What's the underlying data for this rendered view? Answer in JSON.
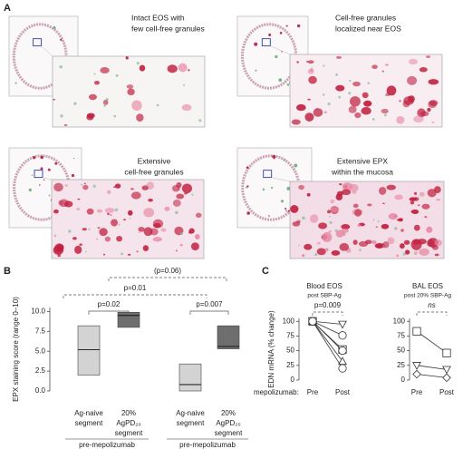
{
  "panels": {
    "A": {
      "label": "A",
      "images": [
        {
          "caption": [
            "Intact EOS with",
            "few cell-free granules"
          ]
        },
        {
          "caption": [
            "Cell-free granules",
            "localized near EOS"
          ]
        },
        {
          "caption": [
            "Extensive",
            "cell-free granules"
          ]
        },
        {
          "caption": [
            "Extensive EPX",
            "within the mucosa"
          ]
        }
      ]
    },
    "B": {
      "label": "B"
    },
    "C": {
      "label": "C"
    }
  },
  "chart_data": [
    {
      "type": "box",
      "ylabel": "EPX staining score (range 0–10)",
      "categories": [
        [
          "Ag-naive",
          "segment"
        ],
        [
          "20%",
          "AgPD₂₀",
          "segment"
        ],
        [
          "Ag-naive",
          "segment"
        ],
        [
          "20%",
          "AgPD₂₀",
          "segment"
        ]
      ],
      "groups": [
        "pre-mepolizumab",
        "pre-mepolizumab"
      ],
      "boxes": [
        {
          "low": 2.0,
          "median": 5.2,
          "high": 8.2
        },
        {
          "low": 8.0,
          "median": 9.5,
          "high": 9.9
        },
        {
          "low": 0.0,
          "median": 0.8,
          "high": 3.4
        },
        {
          "low": 5.3,
          "median": 5.6,
          "high": 8.2
        }
      ],
      "colors": [
        "#d3d3d3",
        "#6e6e6e",
        "#d3d3d3",
        "#6e6e6e"
      ],
      "ylim": [
        0,
        10.5
      ],
      "yticks": [
        {
          "value": 0,
          "label": "0.0"
        },
        {
          "value": 2.5,
          "label": "2.5"
        },
        {
          "value": 5,
          "label": "5.0"
        },
        {
          "value": 7.5,
          "label": "7.5"
        },
        {
          "value": 10,
          "label": "10.0"
        }
      ],
      "annotations": [
        "(p=0.06)",
        "p=0.01",
        "p=0.02",
        "p=0.007"
      ]
    },
    {
      "type": "line",
      "title": "Blood EOS",
      "subtitle": "post SBP-Ag",
      "ylabel": "EDN mRNA (% change)",
      "xlabel": "mepolizumab:",
      "categories": [
        "Pre",
        "Post"
      ],
      "ylim": [
        0,
        105
      ],
      "yticks": [
        0,
        25,
        50,
        75,
        100
      ],
      "color": "#333",
      "series": [
        {
          "marker": "triangle-down",
          "values": [
            100,
            95
          ]
        },
        {
          "marker": "circle",
          "values": [
            100,
            76
          ]
        },
        {
          "marker": "square",
          "values": [
            100,
            52
          ]
        },
        {
          "marker": "circle",
          "values": [
            100,
            50
          ]
        },
        {
          "marker": "triangle-up",
          "values": [
            100,
            32
          ]
        },
        {
          "marker": "circle",
          "values": [
            100,
            20
          ]
        }
      ],
      "annotations": [
        "p=0.009"
      ]
    },
    {
      "type": "line",
      "title": "BAL EOS",
      "subtitle": "post 20% SBP-Ag",
      "categories": [
        "Pre",
        "Post"
      ],
      "ylim": [
        0,
        105
      ],
      "yticks": [
        0,
        25,
        50,
        75,
        100
      ],
      "color": "#333",
      "series": [
        {
          "marker": "square",
          "values": [
            83,
            46
          ]
        },
        {
          "marker": "triangle-down",
          "values": [
            25,
            18
          ]
        },
        {
          "marker": "diamond",
          "values": [
            10,
            4
          ]
        }
      ],
      "annotations": [
        "ns"
      ]
    }
  ]
}
